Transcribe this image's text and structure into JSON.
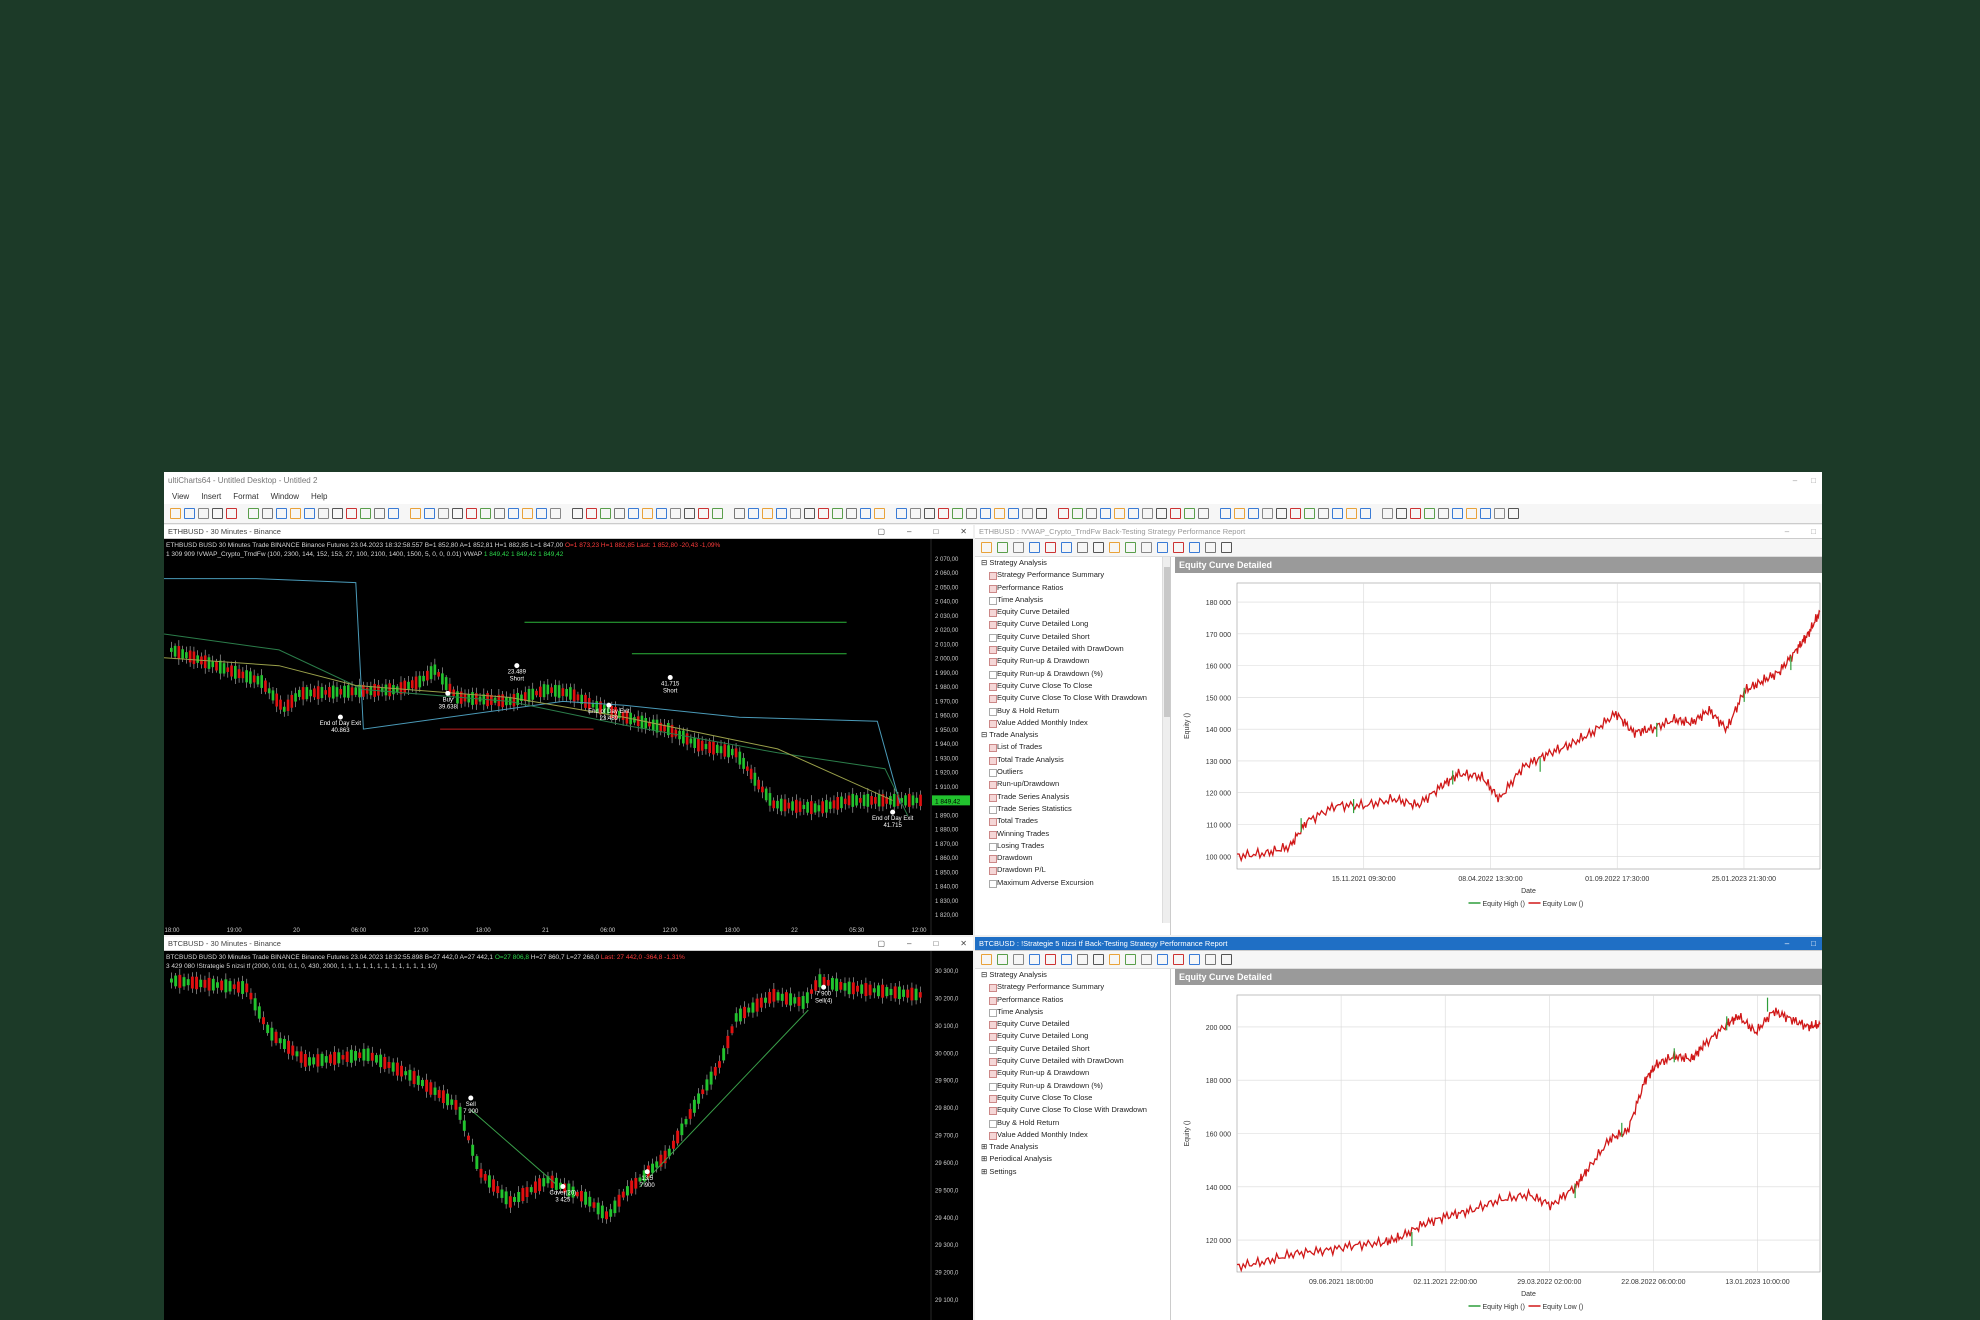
{
  "app": {
    "title": "ultiCharts64 - Untitled Desktop - Untitled 2",
    "menu": [
      "View",
      "Insert",
      "Format",
      "Window",
      "Help"
    ]
  },
  "eth_chart": {
    "header": "ETHBUSD - 30 Minutes - Binance",
    "info_line1": "ETHBUSD  BUSD  30 Minutes  Trade  BINANCE  Binance Futures  23.04.2023 18:32:58.557  B=1 852,80  A=1 852,81  H=1 882,85  L=1 847,00",
    "info_red": "O=1 873,23  H=1 882,85  Last: 1 852,80  -20,43  -1,09%",
    "info_line2": "1 309 909  !VWAP_Crypto_TrndFw (100, 2300, 144, 152, 153, 27, 100, 2100, 1400, 1500, 5, 0, 0, 0.01)  VWAP",
    "info_green": "1 849,42  1 849,42  1 849,42",
    "y_ticks": [
      "2 070,00",
      "2 060,00",
      "2 050,00",
      "2 040,00",
      "2 030,00",
      "2 020,00",
      "2 010,00",
      "2 000,00",
      "1 990,00",
      "1 980,00",
      "1 970,00",
      "1 960,00",
      "1 950,00",
      "1 940,00",
      "1 930,00",
      "1 920,00",
      "1 910,00",
      "1 900,00",
      "1 890,00",
      "1 880,00",
      "1 870,00",
      "1 860,00",
      "1 850,00",
      "1 840,00",
      "1 830,00",
      "1 820,00"
    ],
    "x_ticks": [
      "18:00",
      "19:00",
      "20",
      "06:00",
      "12:00",
      "18:00",
      "21",
      "06:00",
      "12:00",
      "18:00",
      "22",
      "05:30",
      "12:00"
    ],
    "price_tag": "1 849,42",
    "annotations": [
      {
        "t1": "End of Day Exit",
        "t2": "40.863"
      },
      {
        "t1": "Buy",
        "t2": "39.638"
      },
      {
        "t1": "23.489",
        "t2": "Short"
      },
      {
        "t1": "End of Day Exit",
        "t2": "23.489"
      },
      {
        "t1": "41.715",
        "t2": "Short"
      },
      {
        "t1": "End of Day Exit",
        "t2": "41.715"
      }
    ]
  },
  "btc_chart": {
    "header": "BTCBUSD - 30 Minutes - Binance",
    "info_line1": "BTCBUSD  BUSD  30 Minutes  Trade  BINANCE  Binance Futures  23.04.2023 18:32:55.898  B=27 442,0  A=27 442,1",
    "info_green": "O=27 806,8",
    "info_mid": "H=27 860,7  L=27 268,0",
    "info_red": "Last: 27 442,0  -364,8  -1,31%",
    "info_line2": "3 429 080  !Strategie 5 nizsi tf (2000, 0.01, 0.1, 0, 430, 2000, 1, 1, 1, 1, 1, 1, 1, 1, 1, 1, 1, 1, 10)",
    "y_ticks": [
      "30 300,0",
      "30 200,0",
      "30 100,0",
      "30 000,0",
      "29 900,0",
      "29 800,0",
      "29 700,0",
      "29 600,0",
      "29 500,0",
      "29 400,0",
      "29 300,0",
      "29 200,0",
      "29 100,0"
    ],
    "annotations": [
      {
        "t1": "Sell",
        "t2": "7 900"
      },
      {
        "t1": "Sell",
        "t2": "3 425"
      },
      {
        "t1": "Cover(20)",
        "t2": "3 425"
      },
      {
        "t1": "13.5",
        "t2": "7 900"
      },
      {
        "t1": "7 900",
        "t2": "Sell(4)"
      }
    ]
  },
  "report_top": {
    "header": "ETHBUSD : !VWAP_Crypto_TrndFw Back-Testing Strategy Performance Report",
    "tree_groups": [
      {
        "label": "Strategy Analysis",
        "items": [
          "Strategy Performance Summary",
          "Performance Ratios",
          "Time Analysis",
          "Equity Curve Detailed",
          "Equity Curve Detailed Long",
          "Equity Curve Detailed Short",
          "Equity Curve Detailed with DrawDown",
          "Equity Run-up & Drawdown",
          "Equity Run-up & Drawdown (%)",
          "Equity Curve Close To Close",
          "Equity Curve Close To Close With Drawdown",
          "Buy & Hold Return",
          "Value Added Monthly Index"
        ]
      },
      {
        "label": "Trade Analysis",
        "items": [
          "List of Trades",
          "Total Trade Analysis",
          "Outliers",
          "Run-up/Drawdown",
          "Trade Series Analysis",
          "Trade Series Statistics",
          "Total Trades",
          "Winning Trades",
          "Losing Trades",
          "Drawdown",
          "Drawdown P/L",
          "Maximum Adverse Excursion"
        ]
      }
    ],
    "graph_title": "Equity Curve Detailed",
    "legend": [
      "Equity High ()",
      "Equity Low ()"
    ],
    "legend_colors": [
      "#2e9e3a",
      "#d01818"
    ]
  },
  "report_bottom": {
    "header": "BTCBUSD : !Strategie 5 nizsi tf Back-Testing Strategy Performance Report",
    "tree_groups": [
      {
        "label": "Strategy Analysis",
        "items": [
          "Strategy Performance Summary",
          "Performance Ratios",
          "Time Analysis",
          "Equity Curve Detailed",
          "Equity Curve Detailed Long",
          "Equity Curve Detailed Short",
          "Equity Curve Detailed with DrawDown",
          "Equity Run-up & Drawdown",
          "Equity Run-up & Drawdown (%)",
          "Equity Curve Close To Close",
          "Equity Curve Close To Close With Drawdown",
          "Buy & Hold Return",
          "Value Added Monthly Index"
        ]
      },
      {
        "label": "Trade Analysis",
        "items": []
      },
      {
        "label": "Periodical Analysis",
        "items": []
      },
      {
        "label": "Settings",
        "items": []
      }
    ],
    "graph_title": "Equity Curve Detailed",
    "legend": [
      "Equity High ()",
      "Equity Low ()"
    ],
    "legend_colors": [
      "#2e9e3a",
      "#d01818"
    ]
  },
  "chart_data": [
    {
      "type": "line",
      "title": "Equity Curve Detailed",
      "xlabel": "Date",
      "ylabel": "Equity ()",
      "x_ticks": [
        "15.11.2021 09:30:00",
        "08.04.2022 13:30:00",
        "01.09.2022 17:30:00",
        "25.01.2023 21:30:00"
      ],
      "y_ticks": [
        100000,
        110000,
        120000,
        130000,
        140000,
        150000,
        160000,
        170000,
        180000
      ],
      "ylim": [
        96000,
        186000
      ],
      "series": [
        {
          "name": "Equity Low ()",
          "color": "#d01818",
          "x": [
            0,
            0.05,
            0.09,
            0.12,
            0.17,
            0.22,
            0.27,
            0.31,
            0.35,
            0.38,
            0.42,
            0.45,
            0.49,
            0.53,
            0.57,
            0.61,
            0.65,
            0.68,
            0.71,
            0.75,
            0.78,
            0.81,
            0.84,
            0.87,
            0.9,
            0.93,
            0.96,
            0.98,
            1.0
          ],
          "values": [
            100000,
            101000,
            103000,
            111000,
            116000,
            116000,
            118000,
            116000,
            122000,
            126000,
            125000,
            118000,
            128000,
            132000,
            135000,
            139000,
            145000,
            139000,
            140000,
            143000,
            142000,
            146000,
            140000,
            152000,
            155000,
            158000,
            165000,
            170000,
            177000
          ]
        },
        {
          "name": "Equity High ()",
          "color": "#2e9e3a",
          "x": [
            0.11,
            0.2,
            0.37,
            0.52,
            0.72,
            0.87,
            0.95
          ],
          "values": [
            112000,
            118000,
            127000,
            131000,
            142000,
            153000,
            163000
          ]
        }
      ],
      "grid": true,
      "legend": "bottom"
    },
    {
      "type": "line",
      "title": "Equity Curve Detailed",
      "xlabel": "Date",
      "ylabel": "Equity ()",
      "x_ticks": [
        "09.06.2021 18:00:00",
        "02.11.2021 22:00:00",
        "29.03.2022 02:00:00",
        "22.08.2022 06:00:00",
        "13.01.2023 10:00:00"
      ],
      "y_ticks": [
        120000,
        140000,
        160000,
        180000,
        200000
      ],
      "ylim": [
        108000,
        212000
      ],
      "series": [
        {
          "name": "Equity Low ()",
          "color": "#d01818",
          "x": [
            0,
            0.05,
            0.1,
            0.15,
            0.2,
            0.25,
            0.28,
            0.32,
            0.36,
            0.4,
            0.45,
            0.5,
            0.54,
            0.58,
            0.6,
            0.64,
            0.67,
            0.7,
            0.72,
            0.75,
            0.78,
            0.8,
            0.84,
            0.86,
            0.89,
            0.92,
            0.95,
            0.98,
            1.0
          ],
          "values": [
            110000,
            112000,
            115000,
            116000,
            118000,
            119000,
            121000,
            126000,
            129000,
            131000,
            135000,
            137000,
            133000,
            140000,
            146000,
            158000,
            161000,
            180000,
            186000,
            189000,
            188000,
            193000,
            201000,
            204000,
            198000,
            206000,
            203000,
            200000,
            201000
          ]
        },
        {
          "name": "Equity High ()",
          "color": "#2e9e3a",
          "x": [
            0.3,
            0.58,
            0.66,
            0.75,
            0.84,
            0.91
          ],
          "values": [
            123000,
            141000,
            164000,
            192000,
            204000,
            211000
          ]
        }
      ],
      "grid": true,
      "legend": "bottom"
    }
  ]
}
